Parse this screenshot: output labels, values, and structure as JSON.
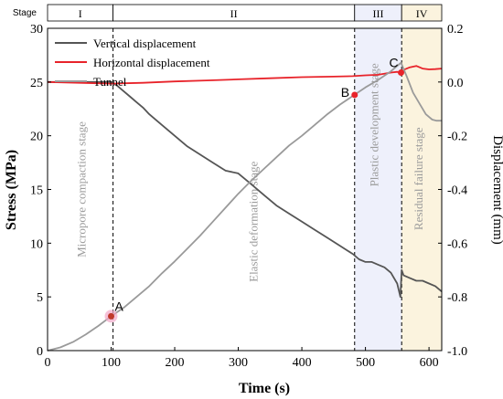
{
  "chart_data": {
    "type": "line",
    "xlabel": "Time (s)",
    "ylabel_left": "Stress (MPa)",
    "ylabel_right": "Displacement (mm)",
    "xlim": [
      0,
      620
    ],
    "ylim_left": [
      0,
      30
    ],
    "ylim_right": [
      -1.0,
      0.2
    ],
    "x_ticks": [
      0,
      100,
      200,
      300,
      400,
      500,
      600
    ],
    "y_left_ticks": [
      0,
      5,
      10,
      15,
      20,
      25,
      30
    ],
    "y_right_ticks": [
      "0.2",
      "0.0",
      "-0.2",
      "-0.4",
      "-0.6",
      "-0.8",
      "-1.0"
    ],
    "y_right_tick_values": [
      0.2,
      0.0,
      -0.2,
      -0.4,
      -0.6,
      -0.8,
      -1.0
    ],
    "stage_axis_label": "Stage",
    "stages": [
      {
        "label": "I",
        "x_start": 0,
        "x_end": 103,
        "color": "#ffffff"
      },
      {
        "label": "II",
        "x_start": 103,
        "x_end": 483,
        "color": "#ffffff"
      },
      {
        "label": "III",
        "x_start": 483,
        "x_end": 557,
        "color": "#eef0fb"
      },
      {
        "label": "IV",
        "x_start": 557,
        "x_end": 620,
        "color": "#fbf3de"
      }
    ],
    "stage_texts": [
      {
        "text": "Micropore compaction stage",
        "x": 60,
        "y": 15
      },
      {
        "text": "Elastic deformation stage",
        "x": 330,
        "y": 12
      },
      {
        "text": "Plastic development stage",
        "x": 520,
        "y": 21
      },
      {
        "text": "Residual failure stage",
        "x": 590,
        "y": 16
      }
    ],
    "points": [
      {
        "label": "A",
        "x": 100,
        "y": 3.2,
        "axis": "left"
      },
      {
        "label": "B",
        "x": 483,
        "y": 23.8,
        "axis": "left"
      },
      {
        "label": "C",
        "x": 556,
        "y": 0.035,
        "axis": "right"
      }
    ],
    "series": [
      {
        "name": "Vertical displacement",
        "axis": "right",
        "color": "#555555",
        "x": [
          0,
          50,
          100,
          103,
          110,
          120,
          130,
          140,
          150,
          160,
          180,
          200,
          220,
          240,
          260,
          280,
          300,
          320,
          340,
          360,
          380,
          400,
          420,
          440,
          460,
          480,
          490,
          500,
          510,
          520,
          530,
          540,
          550,
          555,
          557,
          560,
          570,
          580,
          590,
          600,
          610,
          620
        ],
        "y": [
          0.0,
          0.0,
          0.0,
          -0.002,
          -0.015,
          -0.035,
          -0.055,
          -0.075,
          -0.095,
          -0.12,
          -0.16,
          -0.2,
          -0.24,
          -0.27,
          -0.3,
          -0.33,
          -0.34,
          -0.38,
          -0.42,
          -0.46,
          -0.49,
          -0.52,
          -0.55,
          -0.58,
          -0.61,
          -0.64,
          -0.66,
          -0.67,
          -0.67,
          -0.68,
          -0.69,
          -0.71,
          -0.75,
          -0.8,
          -0.7,
          -0.72,
          -0.73,
          -0.74,
          -0.74,
          -0.75,
          -0.76,
          -0.78
        ]
      },
      {
        "name": "Horizontal displacement",
        "axis": "right",
        "color": "#e8232a",
        "x": [
          0,
          50,
          100,
          150,
          200,
          250,
          300,
          350,
          400,
          450,
          480,
          500,
          520,
          540,
          550,
          556,
          560,
          565,
          570,
          580,
          590,
          600,
          610,
          620
        ],
        "y": [
          0.0,
          -0.003,
          -0.006,
          -0.003,
          0.002,
          0.006,
          0.01,
          0.014,
          0.018,
          0.02,
          0.022,
          0.025,
          0.027,
          0.035,
          0.038,
          0.033,
          0.045,
          0.05,
          0.055,
          0.06,
          0.05,
          0.047,
          0.048,
          0.05
        ]
      },
      {
        "name": "Tunnel",
        "axis": "left",
        "color": "#9a9a9a",
        "x": [
          0,
          20,
          40,
          60,
          80,
          100,
          120,
          140,
          160,
          180,
          200,
          220,
          240,
          260,
          280,
          300,
          320,
          340,
          360,
          380,
          400,
          420,
          440,
          460,
          480,
          500,
          520,
          540,
          556,
          565,
          575,
          585,
          595,
          605,
          612,
          620
        ],
        "y": [
          0.0,
          0.3,
          0.8,
          1.5,
          2.3,
          3.2,
          4.0,
          5.0,
          6.0,
          7.2,
          8.3,
          9.5,
          10.7,
          12.0,
          13.3,
          14.6,
          15.8,
          16.9,
          18.0,
          19.1,
          20.0,
          21.0,
          22.0,
          22.9,
          23.7,
          24.5,
          25.2,
          26.0,
          26.8,
          25.5,
          24.0,
          23.0,
          22.0,
          21.5,
          21.4,
          21.4
        ]
      }
    ],
    "legend": {
      "placement": "top-left"
    }
  }
}
